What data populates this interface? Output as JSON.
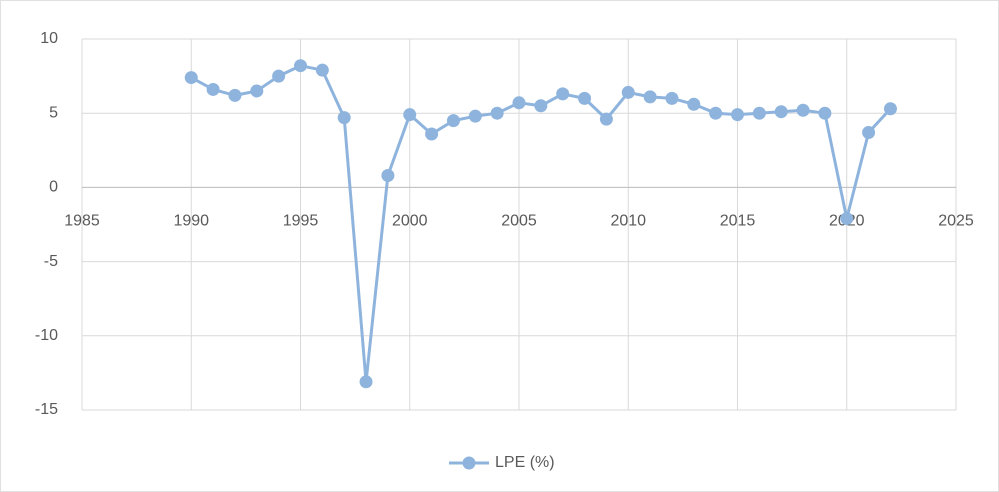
{
  "chart_data": {
    "type": "line",
    "x": [
      1990,
      1991,
      1992,
      1993,
      1994,
      1995,
      1996,
      1997,
      1998,
      1999,
      2000,
      2001,
      2002,
      2003,
      2004,
      2005,
      2006,
      2007,
      2008,
      2009,
      2010,
      2011,
      2012,
      2013,
      2014,
      2015,
      2016,
      2017,
      2018,
      2019,
      2020,
      2021,
      2022
    ],
    "series": [
      {
        "name": "LPE (%)",
        "color": "#8eb4de",
        "values": [
          7.4,
          6.6,
          6.2,
          6.5,
          7.5,
          8.2,
          7.9,
          4.7,
          -13.1,
          0.8,
          4.9,
          3.6,
          4.5,
          4.8,
          5.0,
          5.7,
          5.5,
          6.3,
          6.0,
          4.6,
          6.4,
          6.1,
          6.0,
          5.6,
          5.0,
          4.9,
          5.0,
          5.1,
          5.2,
          5.0,
          -2.1,
          3.7,
          5.3
        ]
      }
    ],
    "xlim": [
      1985,
      2025
    ],
    "xticks": [
      1985,
      1990,
      1995,
      2000,
      2005,
      2010,
      2015,
      2020,
      2025
    ],
    "ylim": [
      -15,
      10
    ],
    "yticks": [
      -15,
      -10,
      -5,
      0,
      5,
      10
    ],
    "grid": true,
    "legend": "bottom"
  }
}
